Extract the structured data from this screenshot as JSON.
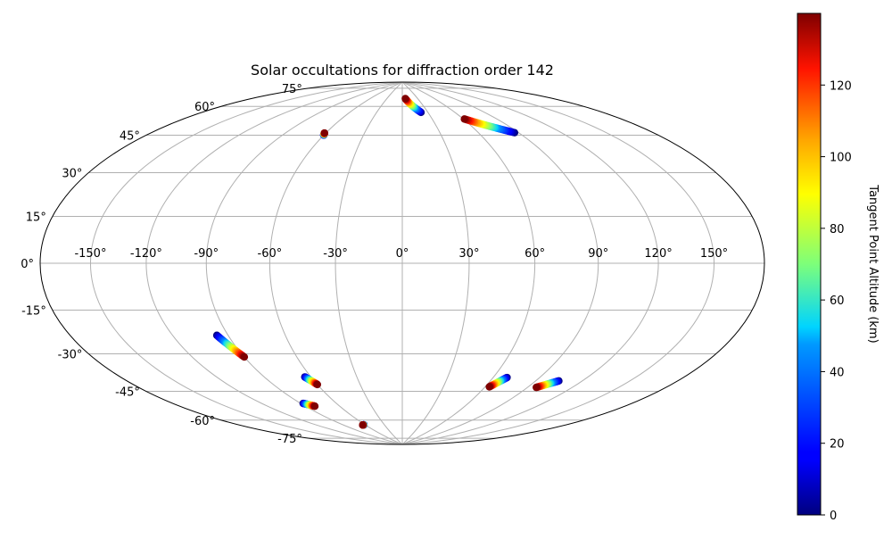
{
  "chart_data": {
    "type": "scatter",
    "projection": "hammer",
    "title": "Solar occultations for diffraction order 142",
    "longitude_ticks": [
      "-150°",
      "-120°",
      "-90°",
      "-60°",
      "-30°",
      "0°",
      "30°",
      "60°",
      "90°",
      "120°",
      "150°"
    ],
    "latitude_ticks": [
      "-75°",
      "-60°",
      "-45°",
      "-30°",
      "-15°",
      "0°",
      "15°",
      "30°",
      "45°",
      "60°",
      "75°"
    ],
    "grid": true,
    "colorbar": {
      "label": "Tangent Point Altitude (km)",
      "colormap": "jet",
      "range": [
        0,
        140
      ],
      "ticks": [
        "0",
        "20",
        "40",
        "60",
        "80",
        "100",
        "120"
      ]
    },
    "series": [
      {
        "lon_start": -60,
        "lat_start": 58.5,
        "lon_end": -61,
        "lat_end": 59.5,
        "alt_start": 0,
        "alt_end": 140
      },
      {
        "lon_start": 22,
        "lat_start": 72,
        "lon_end": 6,
        "lat_end": 80,
        "alt_start": 0,
        "alt_end": 140
      },
      {
        "lon_start": 87,
        "lat_start": 58,
        "lon_end": 61,
        "lat_end": 67,
        "alt_start": 0,
        "alt_end": 140
      },
      {
        "lon_start": -96,
        "lat_start": -30,
        "lon_end": -90,
        "lat_end": -40,
        "alt_start": 0,
        "alt_end": 140
      },
      {
        "lon_start": -64,
        "lat_start": -51,
        "lon_end": -60,
        "lat_end": -55,
        "alt_start": 0,
        "alt_end": 140
      },
      {
        "lon_start": -88,
        "lat_start": -63,
        "lon_end": -82,
        "lat_end": -65,
        "alt_start": 0,
        "alt_end": 140
      },
      {
        "lon_start": -62,
        "lat_start": -77,
        "lon_end": -64,
        "lat_end": -77,
        "alt_start": 0,
        "alt_end": 140
      },
      {
        "lon_start": 69,
        "lat_start": -51,
        "lon_end": 63,
        "lat_end": -56,
        "alt_start": 0,
        "alt_end": 140
      },
      {
        "lon_start": 105,
        "lat_start": -50,
        "lon_end": 96,
        "lat_end": -54,
        "alt_start": 0,
        "alt_end": 140
      }
    ]
  }
}
